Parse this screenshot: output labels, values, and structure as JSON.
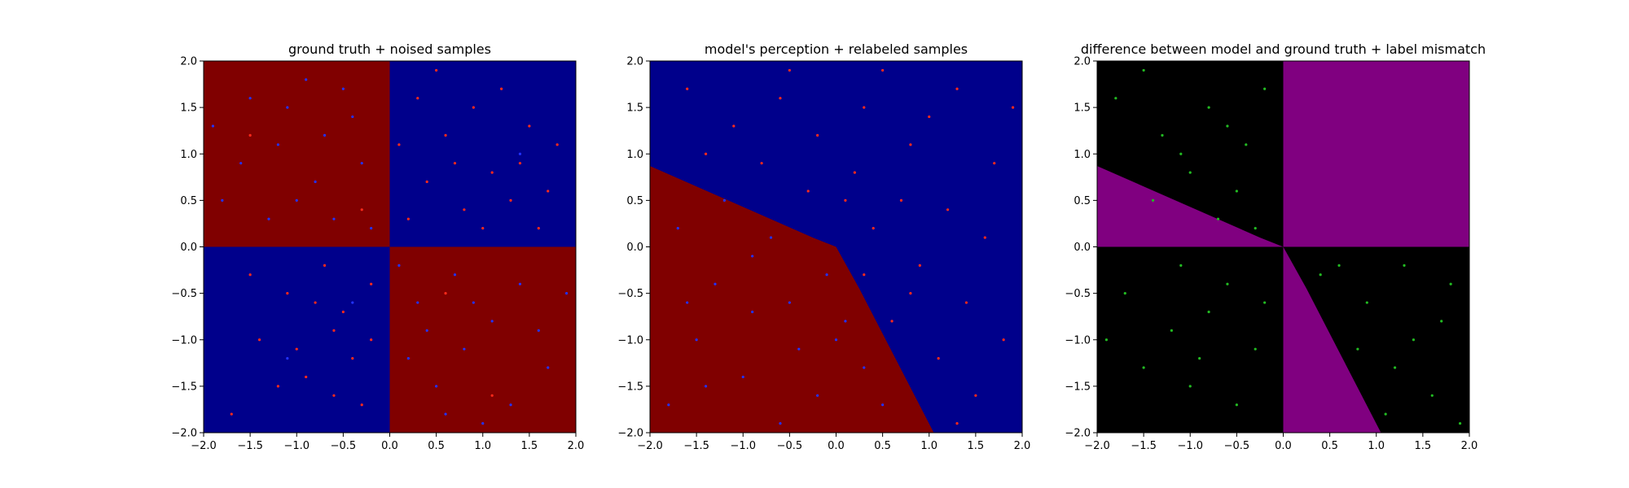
{
  "palette": {
    "dark_red": "#800000",
    "dark_blue": "#00008b",
    "purple": "#800080",
    "black": "#000000",
    "point_red": "#ff2a1a",
    "point_blue": "#2233ff",
    "point_green": "#22bb22"
  },
  "chart_data": [
    {
      "type": "scatter",
      "title": "ground truth + noised samples",
      "xlabel": "",
      "ylabel": "",
      "xlim": [
        -2.0,
        2.0
      ],
      "ylim": [
        -2.0,
        2.0
      ],
      "xticks": [
        "−2.0",
        "−1.5",
        "−1.0",
        "−0.5",
        "0.0",
        "0.5",
        "1.0",
        "1.5",
        "2.0"
      ],
      "yticks": [
        "−2.0",
        "−1.5",
        "−1.0",
        "−0.5",
        "0.0",
        "0.5",
        "1.0",
        "1.5",
        "2.0"
      ],
      "grid": false,
      "background_regions": [
        {
          "polygon": [
            [
              -2,
              0
            ],
            [
              0,
              0
            ],
            [
              0,
              2
            ],
            [
              -2,
              2
            ]
          ],
          "color": "#800000"
        },
        {
          "polygon": [
            [
              0,
              0
            ],
            [
              2,
              0
            ],
            [
              2,
              2
            ],
            [
              0,
              2
            ]
          ],
          "color": "#00008b"
        },
        {
          "polygon": [
            [
              -2,
              -2
            ],
            [
              0,
              -2
            ],
            [
              0,
              0
            ],
            [
              -2,
              0
            ]
          ],
          "color": "#00008b"
        },
        {
          "polygon": [
            [
              0,
              -2
            ],
            [
              2,
              -2
            ],
            [
              2,
              0
            ],
            [
              0,
              0
            ]
          ],
          "color": "#800000"
        }
      ],
      "series": [
        {
          "marker_color": "#ff2a1a",
          "points": [
            [
              0.3,
              1.6
            ],
            [
              0.6,
              1.2
            ],
            [
              1.1,
              0.8
            ],
            [
              1.5,
              1.3
            ],
            [
              0.8,
              0.4
            ],
            [
              1.7,
              0.6
            ],
            [
              0.4,
              0.7
            ],
            [
              1.2,
              1.7
            ],
            [
              0.9,
              1.5
            ],
            [
              1.6,
              0.2
            ],
            [
              0.2,
              0.3
            ],
            [
              1.3,
              0.5
            ],
            [
              0.5,
              1.9
            ],
            [
              1.8,
              1.1
            ],
            [
              0.7,
              0.9
            ],
            [
              1.0,
              0.2
            ],
            [
              1.4,
              0.9
            ],
            [
              0.1,
              1.1
            ],
            [
              -1.5,
              -0.3
            ],
            [
              -0.8,
              -0.6
            ],
            [
              -0.4,
              -1.2
            ],
            [
              -1.2,
              -1.5
            ],
            [
              -0.6,
              -0.9
            ],
            [
              -0.2,
              -0.4
            ],
            [
              -1.0,
              -1.1
            ],
            [
              -0.3,
              -1.7
            ],
            [
              -0.7,
              -0.2
            ],
            [
              -1.7,
              -1.8
            ],
            [
              -0.5,
              -0.7
            ],
            [
              -0.9,
              -1.4
            ],
            [
              -1.1,
              -0.5
            ],
            [
              -0.2,
              -1.0
            ],
            [
              -1.4,
              -1.0
            ],
            [
              -0.6,
              -1.6
            ],
            [
              -1.5,
              1.2
            ],
            [
              0.6,
              -0.5
            ],
            [
              -0.3,
              0.4
            ],
            [
              1.1,
              -1.6
            ]
          ]
        },
        {
          "marker_color": "#2233ff",
          "points": [
            [
              -1.5,
              1.6
            ],
            [
              -1.2,
              1.1
            ],
            [
              -0.8,
              0.7
            ],
            [
              -0.4,
              1.4
            ],
            [
              -1.8,
              0.5
            ],
            [
              -0.9,
              1.8
            ],
            [
              -0.6,
              0.3
            ],
            [
              -1.3,
              0.3
            ],
            [
              -0.3,
              0.9
            ],
            [
              -1.0,
              0.5
            ],
            [
              -0.5,
              1.7
            ],
            [
              -1.6,
              0.9
            ],
            [
              -0.7,
              1.2
            ],
            [
              -0.2,
              0.2
            ],
            [
              -1.9,
              1.3
            ],
            [
              -1.1,
              1.5
            ],
            [
              0.3,
              -0.6
            ],
            [
              0.8,
              -1.1
            ],
            [
              1.4,
              -0.4
            ],
            [
              0.5,
              -1.5
            ],
            [
              1.1,
              -0.8
            ],
            [
              0.2,
              -1.2
            ],
            [
              1.7,
              -1.3
            ],
            [
              0.7,
              -0.3
            ],
            [
              1.3,
              -1.7
            ],
            [
              0.4,
              -0.9
            ],
            [
              1.0,
              -1.9
            ],
            [
              0.9,
              -0.6
            ],
            [
              1.6,
              -0.9
            ],
            [
              0.6,
              -1.8
            ],
            [
              0.1,
              -0.2
            ],
            [
              1.9,
              -0.5
            ],
            [
              -1.1,
              -1.2
            ],
            [
              1.4,
              1.0
            ],
            [
              -0.4,
              -0.6
            ]
          ]
        }
      ]
    },
    {
      "type": "scatter",
      "title": "model's perception + relabeled samples",
      "xlabel": "",
      "ylabel": "",
      "xlim": [
        -2.0,
        2.0
      ],
      "ylim": [
        -2.0,
        2.0
      ],
      "xticks": [
        "−2.0",
        "−1.5",
        "−1.0",
        "−0.5",
        "0.0",
        "0.5",
        "1.0",
        "1.5",
        "2.0"
      ],
      "yticks": [
        "−2.0",
        "−1.5",
        "−1.0",
        "−0.5",
        "0.0",
        "0.5",
        "1.0",
        "1.5",
        "2.0"
      ],
      "grid": false,
      "background_regions": [
        {
          "polygon": [
            [
              -2,
              -2
            ],
            [
              2,
              -2
            ],
            [
              2,
              2
            ],
            [
              -2,
              2
            ]
          ],
          "color": "#00008b"
        },
        {
          "polygon": [
            [
              -2,
              0.87
            ],
            [
              -0.25,
              0.1
            ],
            [
              0.0,
              0.0
            ],
            [
              0.25,
              -0.45
            ],
            [
              1.05,
              -2
            ],
            [
              -2,
              -2
            ]
          ],
          "color": "#800000"
        }
      ],
      "series": [
        {
          "marker_color": "#ff2a1a",
          "points": [
            [
              -1.6,
              1.7
            ],
            [
              -1.1,
              1.3
            ],
            [
              -0.6,
              1.6
            ],
            [
              -0.2,
              1.2
            ],
            [
              0.3,
              1.5
            ],
            [
              0.8,
              1.1
            ],
            [
              1.3,
              1.7
            ],
            [
              1.7,
              0.9
            ],
            [
              -1.4,
              1.0
            ],
            [
              -0.8,
              0.9
            ],
            [
              -0.3,
              0.6
            ],
            [
              0.2,
              0.8
            ],
            [
              0.7,
              0.5
            ],
            [
              1.2,
              0.4
            ],
            [
              1.6,
              0.1
            ],
            [
              0.4,
              0.2
            ],
            [
              0.9,
              -0.2
            ],
            [
              1.4,
              -0.6
            ],
            [
              0.6,
              -0.8
            ],
            [
              1.1,
              -1.2
            ],
            [
              1.8,
              -1.0
            ],
            [
              1.5,
              -1.6
            ],
            [
              0.5,
              1.9
            ],
            [
              -0.5,
              1.9
            ],
            [
              1.0,
              1.4
            ],
            [
              0.1,
              0.5
            ],
            [
              1.9,
              1.5
            ],
            [
              0.3,
              -0.3
            ],
            [
              0.8,
              -0.5
            ],
            [
              1.3,
              -1.9
            ]
          ]
        },
        {
          "marker_color": "#2233ff",
          "points": [
            [
              -1.7,
              0.2
            ],
            [
              -1.3,
              -0.4
            ],
            [
              -0.9,
              -0.1
            ],
            [
              -0.5,
              -0.6
            ],
            [
              -1.5,
              -1.0
            ],
            [
              -1.0,
              -1.4
            ],
            [
              -0.4,
              -1.1
            ],
            [
              0.1,
              -0.8
            ],
            [
              -0.2,
              -1.6
            ],
            [
              0.3,
              -1.3
            ],
            [
              -1.8,
              -1.7
            ],
            [
              -1.2,
              0.5
            ],
            [
              -0.7,
              0.1
            ],
            [
              -0.1,
              -0.3
            ],
            [
              0.5,
              -1.7
            ],
            [
              -0.6,
              -1.9
            ],
            [
              -1.4,
              -1.5
            ],
            [
              -0.9,
              -0.7
            ],
            [
              0.0,
              -1.0
            ],
            [
              -1.6,
              -0.6
            ]
          ]
        }
      ]
    },
    {
      "type": "scatter",
      "title": "difference between model and ground truth + label mismatch",
      "xlabel": "",
      "ylabel": "",
      "xlim": [
        -2.0,
        2.0
      ],
      "ylim": [
        -2.0,
        2.0
      ],
      "xticks": [
        "−2.0",
        "−1.5",
        "−1.0",
        "−0.5",
        "0.0",
        "0.5",
        "1.0",
        "1.5",
        "2.0"
      ],
      "yticks": [
        "−2.0",
        "−1.5",
        "−1.0",
        "−0.5",
        "0.0",
        "0.5",
        "1.0",
        "1.5",
        "2.0"
      ],
      "grid": false,
      "background_regions": [
        {
          "polygon": [
            [
              -2,
              -2
            ],
            [
              2,
              -2
            ],
            [
              2,
              2
            ],
            [
              -2,
              2
            ]
          ],
          "color": "#000000"
        },
        {
          "polygon": [
            [
              0,
              0
            ],
            [
              2,
              0
            ],
            [
              2,
              2
            ],
            [
              0,
              2
            ]
          ],
          "color": "#800080"
        },
        {
          "polygon": [
            [
              -2,
              0.87
            ],
            [
              -0.25,
              0.1
            ],
            [
              0.0,
              0.0
            ],
            [
              -2,
              0
            ]
          ],
          "color": "#800080"
        },
        {
          "polygon": [
            [
              0,
              0
            ],
            [
              0.25,
              -0.45
            ],
            [
              1.05,
              -2
            ],
            [
              0,
              -2
            ]
          ],
          "color": "#800080"
        }
      ],
      "series": [
        {
          "marker_color": "#22bb22",
          "points": [
            [
              -1.8,
              1.6
            ],
            [
              -1.3,
              1.2
            ],
            [
              -0.8,
              1.5
            ],
            [
              -0.4,
              1.1
            ],
            [
              -1.0,
              0.8
            ],
            [
              -0.5,
              0.6
            ],
            [
              -0.2,
              1.7
            ],
            [
              -1.5,
              1.9
            ],
            [
              -0.7,
              0.3
            ],
            [
              -0.3,
              0.2
            ],
            [
              -1.1,
              1.0
            ],
            [
              -0.6,
              1.3
            ],
            [
              -1.7,
              -0.5
            ],
            [
              -1.2,
              -0.9
            ],
            [
              -0.6,
              -0.4
            ],
            [
              -0.3,
              -1.1
            ],
            [
              -1.0,
              -1.5
            ],
            [
              -0.5,
              -1.7
            ],
            [
              -1.5,
              -1.3
            ],
            [
              -0.8,
              -0.7
            ],
            [
              -0.2,
              -0.6
            ],
            [
              -1.9,
              -1.0
            ],
            [
              -1.1,
              -0.2
            ],
            [
              0.4,
              -0.3
            ],
            [
              0.9,
              -0.6
            ],
            [
              1.3,
              -0.2
            ],
            [
              1.7,
              -0.8
            ],
            [
              0.8,
              -1.1
            ],
            [
              1.2,
              -1.3
            ],
            [
              1.6,
              -1.6
            ],
            [
              1.1,
              -1.8
            ],
            [
              1.8,
              -0.4
            ],
            [
              0.6,
              -0.2
            ],
            [
              1.4,
              -1.0
            ],
            [
              1.9,
              -1.9
            ],
            [
              -1.4,
              0.5
            ],
            [
              -0.9,
              -1.2
            ]
          ]
        }
      ]
    }
  ]
}
